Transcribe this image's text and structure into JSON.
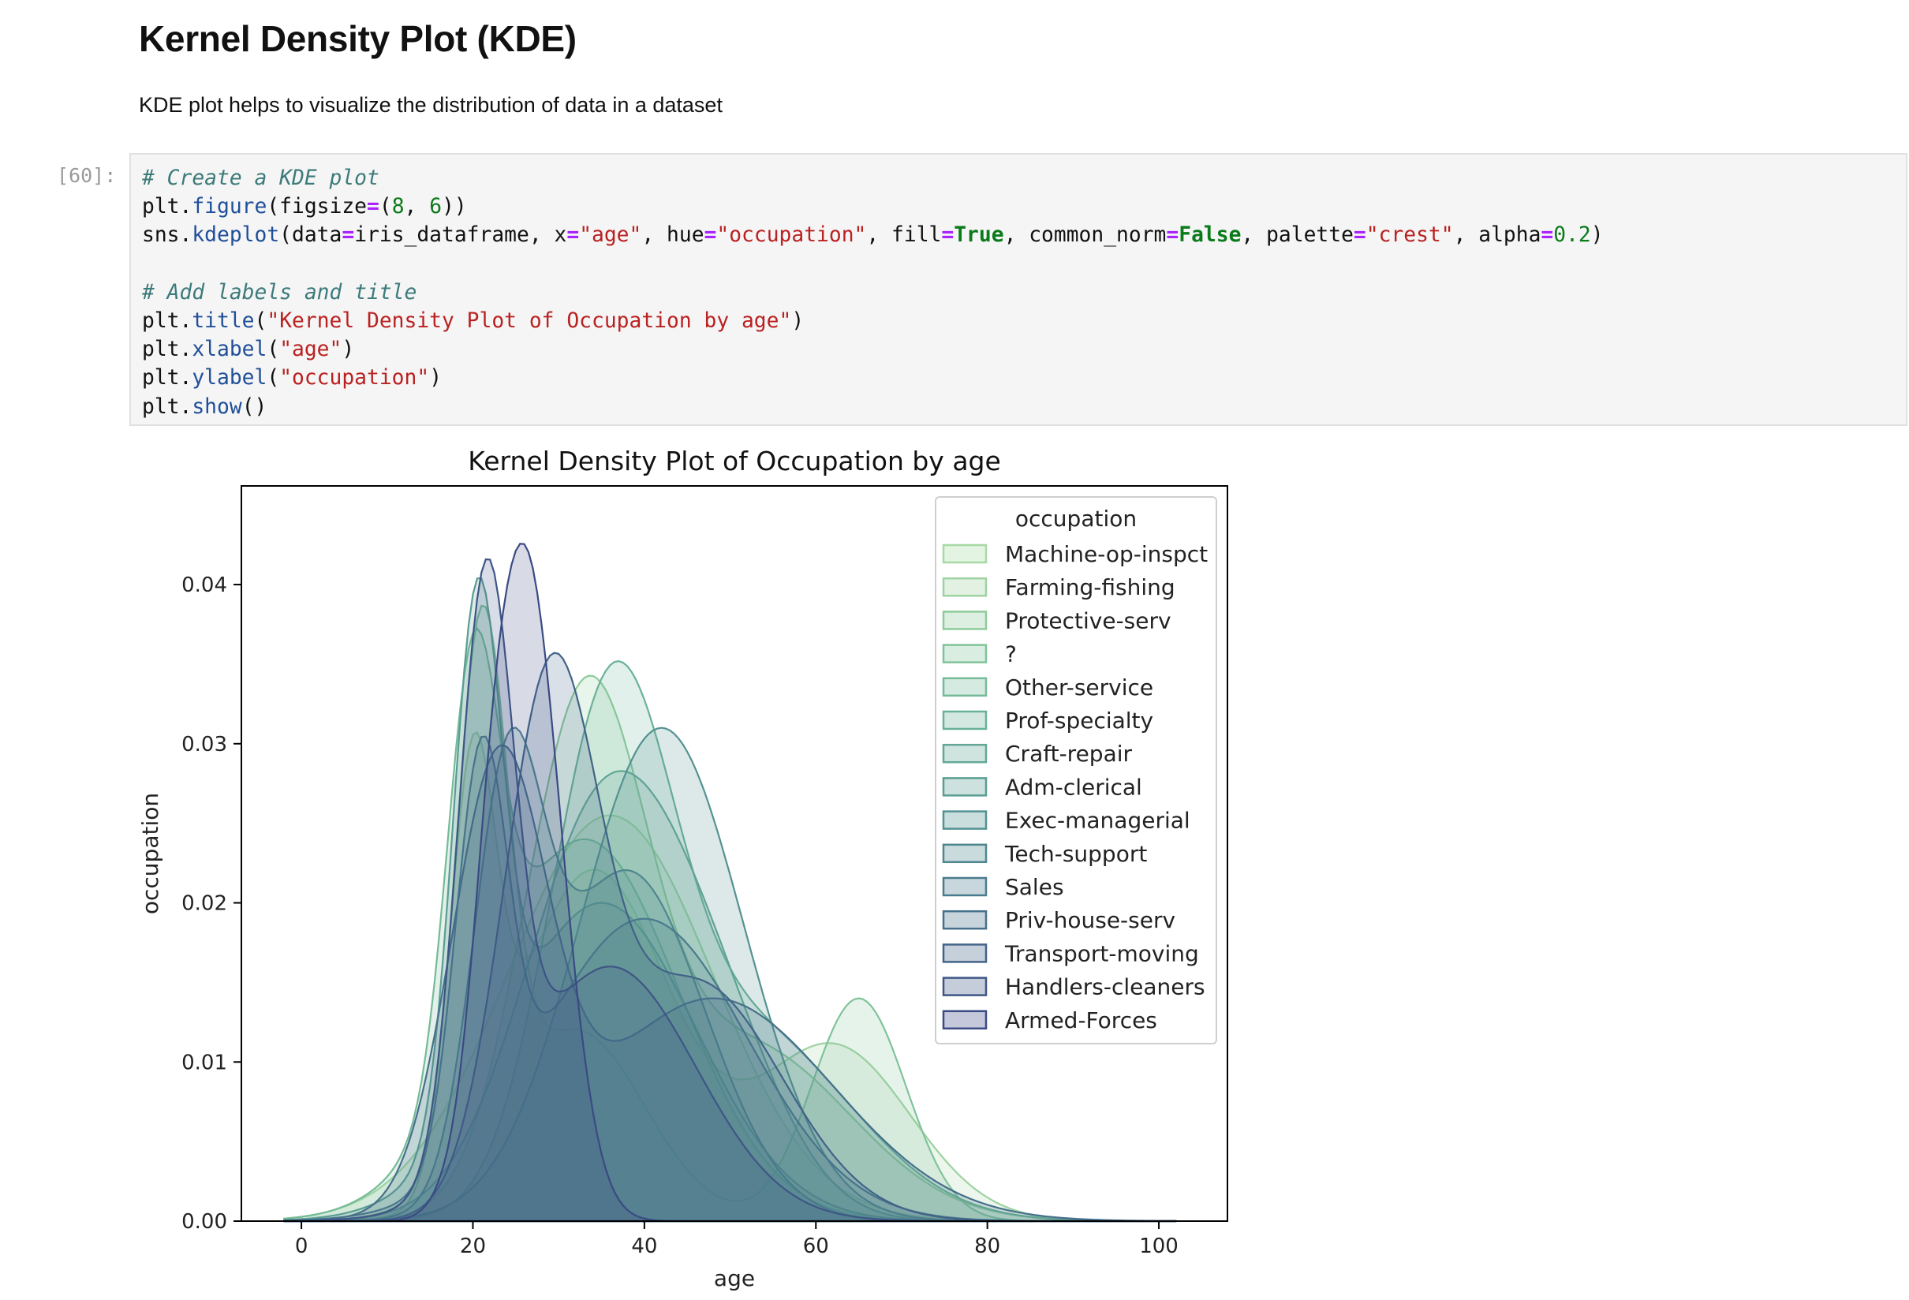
{
  "markdown": {
    "heading": "Kernel Density Plot (KDE)",
    "paragraph": "KDE plot helps to visualize the distribution of data in a dataset"
  },
  "code_cell": {
    "prompt": "[60]:",
    "lines": [
      [
        {
          "t": "# Create a KDE plot",
          "c": "c"
        }
      ],
      [
        {
          "t": "plt."
        },
        {
          "t": "figure",
          "c": "f"
        },
        {
          "t": "(figsize"
        },
        {
          "t": "=",
          "c": "o"
        },
        {
          "t": "("
        },
        {
          "t": "8",
          "c": "n"
        },
        {
          "t": ", "
        },
        {
          "t": "6",
          "c": "n"
        },
        {
          "t": "))"
        }
      ],
      [
        {
          "t": "sns."
        },
        {
          "t": "kdeplot",
          "c": "f"
        },
        {
          "t": "(data"
        },
        {
          "t": "=",
          "c": "o"
        },
        {
          "t": "iris_dataframe, x"
        },
        {
          "t": "=",
          "c": "o"
        },
        {
          "t": "\"age\"",
          "c": "s"
        },
        {
          "t": ", hue"
        },
        {
          "t": "=",
          "c": "o"
        },
        {
          "t": "\"occupation\"",
          "c": "s"
        },
        {
          "t": ", fill"
        },
        {
          "t": "=",
          "c": "o"
        },
        {
          "t": "True",
          "c": "k"
        },
        {
          "t": ", common_norm"
        },
        {
          "t": "=",
          "c": "o"
        },
        {
          "t": "False",
          "c": "k"
        },
        {
          "t": ", palette"
        },
        {
          "t": "=",
          "c": "o"
        },
        {
          "t": "\"crest\"",
          "c": "s"
        },
        {
          "t": ", alpha"
        },
        {
          "t": "=",
          "c": "o"
        },
        {
          "t": "0.2",
          "c": "n"
        },
        {
          "t": ")"
        }
      ],
      [],
      [
        {
          "t": "# Add labels and title",
          "c": "c"
        }
      ],
      [
        {
          "t": "plt."
        },
        {
          "t": "title",
          "c": "f"
        },
        {
          "t": "("
        },
        {
          "t": "\"Kernel Density Plot of Occupation by age\"",
          "c": "s"
        },
        {
          "t": ")"
        }
      ],
      [
        {
          "t": "plt."
        },
        {
          "t": "xlabel",
          "c": "f"
        },
        {
          "t": "("
        },
        {
          "t": "\"age\"",
          "c": "s"
        },
        {
          "t": ")"
        }
      ],
      [
        {
          "t": "plt."
        },
        {
          "t": "ylabel",
          "c": "f"
        },
        {
          "t": "("
        },
        {
          "t": "\"occupation\"",
          "c": "s"
        },
        {
          "t": ")"
        }
      ],
      [
        {
          "t": "plt."
        },
        {
          "t": "show",
          "c": "f"
        },
        {
          "t": "()"
        }
      ]
    ]
  },
  "chart_data": {
    "type": "area",
    "title": "Kernel Density Plot of Occupation by age",
    "xlabel": "age",
    "ylabel": "occupation",
    "xlim": [
      -7,
      108
    ],
    "ylim": [
      0,
      0.0462
    ],
    "xticks": [
      0,
      20,
      40,
      60,
      80,
      100
    ],
    "xtick_labels": [
      "0",
      "20",
      "40",
      "60",
      "80",
      "100"
    ],
    "yticks": [
      0,
      0.01,
      0.02,
      0.03,
      0.04
    ],
    "ytick_labels": [
      "0.00",
      "0.01",
      "0.02",
      "0.03",
      "0.04"
    ],
    "legend": {
      "title": "occupation",
      "position": "top-right"
    },
    "fill_alpha": 0.2,
    "series": [
      {
        "name": "Machine-op-inspct",
        "color": "#a6d9a3",
        "peaks": [
          {
            "mu": 36,
            "sd": 12,
            "h": 0.0255
          }
        ]
      },
      {
        "name": "Farming-fishing",
        "color": "#9ed2a0",
        "peaks": [
          {
            "mu": 20,
            "sd": 2.6,
            "h": 0.024
          },
          {
            "mu": 34,
            "sd": 9,
            "h": 0.022
          },
          {
            "mu": 62,
            "sd": 9,
            "h": 0.011
          }
        ]
      },
      {
        "name": "Protective-serv",
        "color": "#8ecb9a",
        "peaks": [
          {
            "mu": 33,
            "sd": 7,
            "h": 0.031
          },
          {
            "mu": 52,
            "sd": 12,
            "h": 0.011
          }
        ]
      },
      {
        "name": "?",
        "color": "#80c39a",
        "peaks": [
          {
            "mu": 21,
            "sd": 3,
            "h": 0.034
          },
          {
            "mu": 32,
            "sd": 8,
            "h": 0.012
          },
          {
            "mu": 65,
            "sd": 5.5,
            "h": 0.014
          }
        ]
      },
      {
        "name": "Other-service",
        "color": "#75bb98",
        "peaks": [
          {
            "mu": 20,
            "sd": 3,
            "h": 0.025
          },
          {
            "mu": 33,
            "sd": 11,
            "h": 0.024
          }
        ]
      },
      {
        "name": "Prof-specialty",
        "color": "#6ab297",
        "peaks": [
          {
            "mu": 36,
            "sd": 7,
            "h": 0.03
          },
          {
            "mu": 52,
            "sd": 12,
            "h": 0.012
          }
        ]
      },
      {
        "name": "Craft-repair",
        "color": "#62a795",
        "peaks": [
          {
            "mu": 35,
            "sd": 9,
            "h": 0.025
          },
          {
            "mu": 48,
            "sd": 8,
            "h": 0.01
          }
        ]
      },
      {
        "name": "Adm-clerical",
        "color": "#5a9d93",
        "peaks": [
          {
            "mu": 20.5,
            "sd": 2.8,
            "h": 0.032
          },
          {
            "mu": 35,
            "sd": 11,
            "h": 0.02
          }
        ]
      },
      {
        "name": "Exec-managerial",
        "color": "#549291",
        "peaks": [
          {
            "mu": 42,
            "sd": 9.5,
            "h": 0.031
          }
        ]
      },
      {
        "name": "Tech-support",
        "color": "#4f878f",
        "peaks": [
          {
            "mu": 24,
            "sd": 4,
            "h": 0.024
          },
          {
            "mu": 38,
            "sd": 9,
            "h": 0.022
          }
        ]
      },
      {
        "name": "Sales",
        "color": "#4a7b8d",
        "peaks": [
          {
            "mu": 21,
            "sd": 3,
            "h": 0.025
          },
          {
            "mu": 40,
            "sd": 12,
            "h": 0.019
          }
        ]
      },
      {
        "name": "Priv-house-serv",
        "color": "#46708b",
        "peaks": [
          {
            "mu": 23,
            "sd": 5.5,
            "h": 0.027
          },
          {
            "mu": 48,
            "sd": 14,
            "h": 0.014
          }
        ]
      },
      {
        "name": "Transport-moving",
        "color": "#426388",
        "peaks": [
          {
            "mu": 29,
            "sd": 5.5,
            "h": 0.032
          },
          {
            "mu": 46,
            "sd": 10,
            "h": 0.015
          }
        ]
      },
      {
        "name": "Handlers-cleaners",
        "color": "#3e5686",
        "peaks": [
          {
            "mu": 21.5,
            "sd": 3.2,
            "h": 0.036
          },
          {
            "mu": 36,
            "sd": 10,
            "h": 0.016
          }
        ]
      },
      {
        "name": "Armed-Forces",
        "color": "#3a4a83",
        "peaks": [
          {
            "mu": 26,
            "sd": 4.2,
            "h": 0.042
          },
          {
            "mu": 22,
            "sd": 2,
            "h": 0.004
          }
        ]
      }
    ]
  }
}
